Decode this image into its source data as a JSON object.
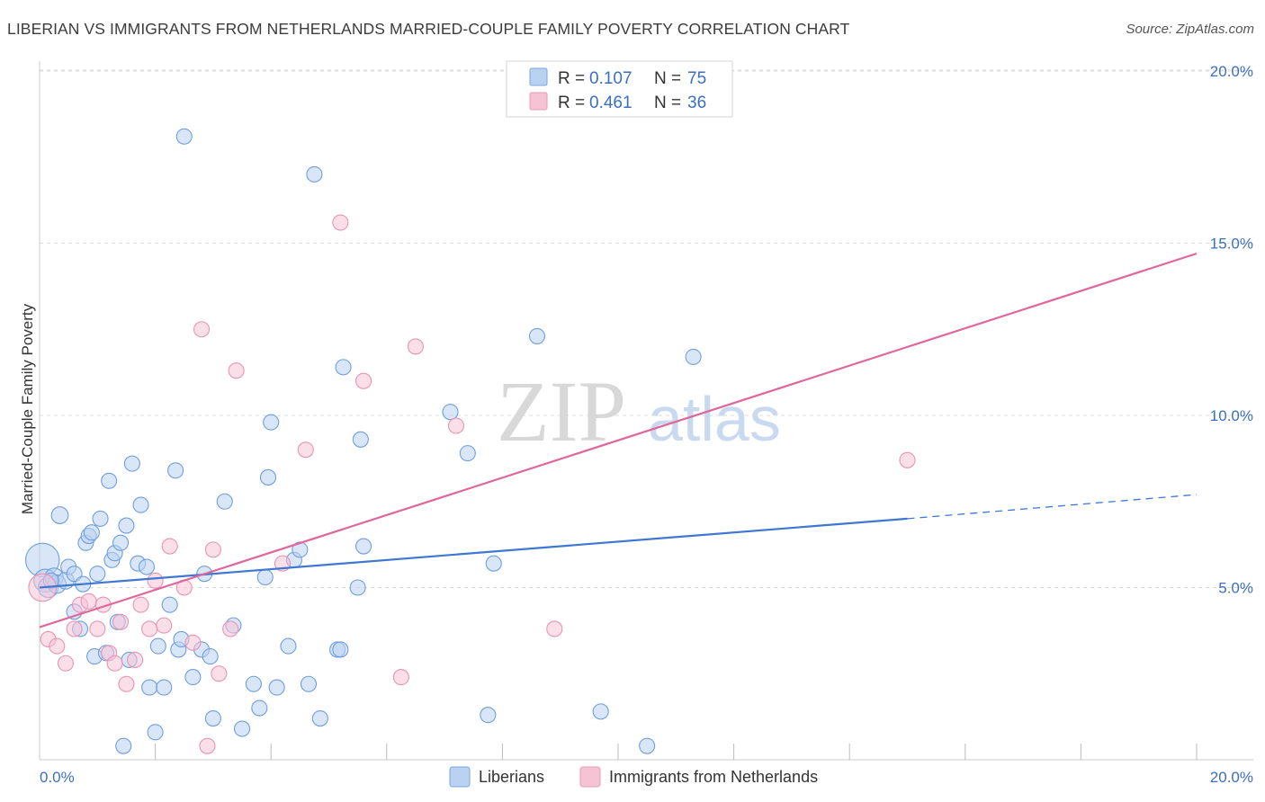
{
  "title": "LIBERIAN VS IMMIGRANTS FROM NETHERLANDS MARRIED-COUPLE FAMILY POVERTY CORRELATION CHART",
  "source": "Source: ZipAtlas.com",
  "watermark": {
    "zip": "ZIP",
    "atlas": "atlas"
  },
  "colors": {
    "blue": "#3f78d1",
    "blue_fill": "#b9d2f2",
    "pink": "#e0679a",
    "pink_fill": "#f6c3d5",
    "grid": "#dddddd",
    "tick_label": "#3b6fc4"
  },
  "legend_box": {
    "rows": [
      {
        "r_label": "R = ",
        "r_value": "0.107",
        "n_label": "N = ",
        "n_value": "75"
      },
      {
        "r_label": "R = ",
        "r_value": "0.461",
        "n_label": "N = ",
        "n_value": "36"
      }
    ]
  },
  "bottom_legend": [
    "Liberians",
    "Immigrants from Netherlands"
  ],
  "chart_data": {
    "type": "scatter",
    "title": "LIBERIAN VS IMMIGRANTS FROM NETHERLANDS MARRIED-COUPLE FAMILY POVERTY CORRELATION CHART",
    "xlabel": "",
    "ylabel": "Married-Couple Family Poverty",
    "xlim": [
      0,
      21
    ],
    "ylim": [
      0,
      20.5
    ],
    "x_tick_labels": [
      {
        "value": 0,
        "label": "0.0%"
      },
      {
        "value": 20,
        "label": "20.0%"
      }
    ],
    "y_tick_labels": [
      {
        "value": 5,
        "label": "5.0%"
      },
      {
        "value": 10,
        "label": "10.0%"
      },
      {
        "value": 15,
        "label": "15.0%"
      },
      {
        "value": 20,
        "label": "20.0%"
      }
    ],
    "x_minor_ticks": [
      2,
      4,
      6,
      8,
      10,
      12,
      14,
      16,
      18,
      20
    ],
    "y_gridlines": [
      5,
      10,
      15,
      20
    ],
    "series": [
      {
        "name": "Liberians",
        "color": "blue",
        "R": 0.107,
        "N": 75,
        "trend": {
          "x0": 0,
          "y0": 5.0,
          "x1": 15.0,
          "y1": 7.0,
          "dash_to_x": 20,
          "dash_to_y": 7.7
        },
        "points": [
          [
            0.05,
            5.8,
            2.2
          ],
          [
            0.1,
            5.2,
            1.5
          ],
          [
            0.15,
            5.0,
            1.3
          ],
          [
            0.25,
            5.3,
            1.2
          ],
          [
            0.3,
            5.1,
            1.2
          ],
          [
            0.35,
            7.1,
            1.1
          ],
          [
            0.45,
            5.2,
            1.1
          ],
          [
            0.5,
            5.6,
            1.0
          ],
          [
            0.6,
            4.3,
            1.0
          ],
          [
            0.6,
            5.4,
            1.0
          ],
          [
            0.7,
            3.8,
            1.0
          ],
          [
            0.75,
            5.1,
            1.0
          ],
          [
            0.8,
            6.3,
            1.0
          ],
          [
            0.85,
            6.5,
            1.0
          ],
          [
            0.9,
            6.6,
            1.0
          ],
          [
            0.95,
            3.0,
            1.0
          ],
          [
            1.0,
            5.4,
            1.0
          ],
          [
            1.05,
            7.0,
            1.0
          ],
          [
            1.15,
            3.1,
            1.0
          ],
          [
            1.2,
            8.1,
            1.0
          ],
          [
            1.25,
            5.8,
            1.0
          ],
          [
            1.3,
            6.0,
            1.0
          ],
          [
            1.35,
            4.0,
            1.0
          ],
          [
            1.4,
            6.3,
            1.0
          ],
          [
            1.5,
            6.8,
            1.0
          ],
          [
            1.55,
            2.9,
            1.0
          ],
          [
            1.6,
            8.6,
            1.0
          ],
          [
            1.7,
            5.7,
            1.0
          ],
          [
            1.75,
            7.4,
            1.0
          ],
          [
            1.85,
            5.6,
            1.0
          ],
          [
            1.9,
            2.1,
            1.0
          ],
          [
            2.0,
            0.8,
            1.0
          ],
          [
            2.05,
            3.3,
            1.0
          ],
          [
            2.15,
            2.1,
            1.0
          ],
          [
            2.25,
            4.5,
            1.0
          ],
          [
            2.35,
            8.4,
            1.0
          ],
          [
            2.4,
            3.2,
            1.0
          ],
          [
            2.45,
            3.5,
            1.0
          ],
          [
            2.5,
            18.1,
            1.0
          ],
          [
            2.65,
            2.4,
            1.0
          ],
          [
            2.8,
            3.2,
            1.0
          ],
          [
            2.85,
            5.4,
            1.0
          ],
          [
            2.95,
            3.0,
            1.0
          ],
          [
            3.0,
            1.2,
            1.0
          ],
          [
            3.2,
            7.5,
            1.0
          ],
          [
            3.35,
            3.9,
            1.0
          ],
          [
            3.5,
            0.9,
            1.0
          ],
          [
            3.7,
            2.2,
            1.0
          ],
          [
            3.8,
            1.5,
            1.0
          ],
          [
            3.9,
            5.3,
            1.0
          ],
          [
            3.95,
            8.2,
            1.0
          ],
          [
            4.0,
            9.8,
            1.0
          ],
          [
            4.1,
            2.1,
            1.0
          ],
          [
            4.3,
            3.3,
            1.0
          ],
          [
            4.4,
            5.8,
            1.0
          ],
          [
            4.5,
            6.1,
            1.0
          ],
          [
            4.65,
            2.2,
            1.0
          ],
          [
            4.75,
            17.0,
            1.0
          ],
          [
            4.85,
            1.2,
            1.0
          ],
          [
            5.15,
            3.2,
            1.0
          ],
          [
            5.2,
            3.2,
            1.0
          ],
          [
            5.25,
            11.4,
            1.0
          ],
          [
            5.5,
            5.0,
            1.0
          ],
          [
            5.55,
            9.3,
            1.0
          ],
          [
            5.6,
            6.2,
            1.0
          ],
          [
            7.1,
            10.1,
            1.0
          ],
          [
            7.4,
            8.9,
            1.0
          ],
          [
            7.75,
            1.3,
            1.0
          ],
          [
            7.85,
            5.7,
            1.0
          ],
          [
            8.6,
            12.3,
            1.0
          ],
          [
            9.7,
            1.4,
            1.0
          ],
          [
            10.5,
            0.4,
            1.0
          ],
          [
            11.3,
            11.7,
            1.0
          ],
          [
            1.45,
            0.4,
            1.0
          ],
          [
            0.2,
            5.2,
            1.0
          ]
        ]
      },
      {
        "name": "Immigrants from Netherlands",
        "color": "pink",
        "R": 0.461,
        "N": 36,
        "trend": {
          "x0": 0,
          "y0": 3.85,
          "x1": 20,
          "y1": 14.7
        },
        "points": [
          [
            0.05,
            5.0,
            1.8
          ],
          [
            0.15,
            3.5,
            1.0
          ],
          [
            0.3,
            3.3,
            1.0
          ],
          [
            0.45,
            2.8,
            1.0
          ],
          [
            0.6,
            3.8,
            1.0
          ],
          [
            0.7,
            4.5,
            1.0
          ],
          [
            0.85,
            4.6,
            1.0
          ],
          [
            1.0,
            3.8,
            1.0
          ],
          [
            1.1,
            4.5,
            1.0
          ],
          [
            1.2,
            3.1,
            1.0
          ],
          [
            1.3,
            2.8,
            1.0
          ],
          [
            1.4,
            4.0,
            1.0
          ],
          [
            1.5,
            2.2,
            1.0
          ],
          [
            1.65,
            2.9,
            1.0
          ],
          [
            1.75,
            4.5,
            1.0
          ],
          [
            1.9,
            3.8,
            1.0
          ],
          [
            2.0,
            5.2,
            1.0
          ],
          [
            2.15,
            3.9,
            1.0
          ],
          [
            2.25,
            6.2,
            1.0
          ],
          [
            2.5,
            5.0,
            1.0
          ],
          [
            2.65,
            3.4,
            1.0
          ],
          [
            2.8,
            12.5,
            1.0
          ],
          [
            2.9,
            0.4,
            1.0
          ],
          [
            3.0,
            6.1,
            1.0
          ],
          [
            3.1,
            2.5,
            1.0
          ],
          [
            3.3,
            3.8,
            1.0
          ],
          [
            3.4,
            11.3,
            1.0
          ],
          [
            4.2,
            5.7,
            1.0
          ],
          [
            4.6,
            9.0,
            1.0
          ],
          [
            5.2,
            15.6,
            1.0
          ],
          [
            5.6,
            11.0,
            1.0
          ],
          [
            6.25,
            2.4,
            1.0
          ],
          [
            6.5,
            12.0,
            1.0
          ],
          [
            7.2,
            9.7,
            1.0
          ],
          [
            8.9,
            3.8,
            1.0
          ],
          [
            15.0,
            8.7,
            1.0
          ]
        ]
      }
    ]
  }
}
